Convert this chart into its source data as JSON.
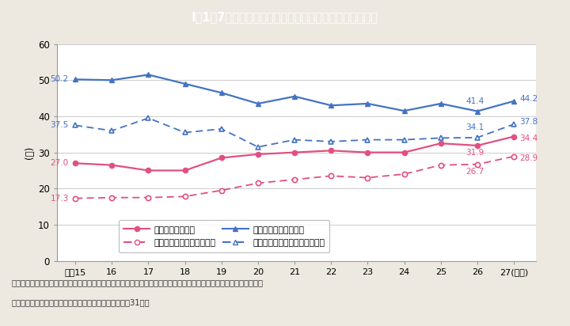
{
  "title": "I－1－7図　地方公務員採用者に占める女性の割合の推移",
  "title_bg_color": "#00b0c8",
  "bg_color": "#ede8e0",
  "plot_bg_color": "#ffffff",
  "ylabel": "(％)",
  "years": [
    "平成15",
    "16",
    "17",
    "18",
    "19",
    "20",
    "21",
    "22",
    "23",
    "24",
    "25",
    "26",
    "27"
  ],
  "last_xlabel": "27(年度)",
  "todo_zentai": [
    27.0,
    26.5,
    25.0,
    25.0,
    28.5,
    29.5,
    30.0,
    30.5,
    30.0,
    30.0,
    32.5,
    31.9,
    34.4
  ],
  "todo_daigaku": [
    17.3,
    17.5,
    17.5,
    17.8,
    19.5,
    21.5,
    22.5,
    23.5,
    23.0,
    24.0,
    26.5,
    26.7,
    28.9
  ],
  "seifurei_zentai": [
    50.2,
    50.0,
    51.5,
    49.0,
    46.5,
    43.5,
    45.5,
    43.0,
    43.5,
    41.5,
    43.5,
    41.4,
    44.2
  ],
  "seifurei_daigaku": [
    37.5,
    36.0,
    39.5,
    35.5,
    36.5,
    31.5,
    33.5,
    33.0,
    33.5,
    33.5,
    34.0,
    34.1,
    37.8
  ],
  "pink": "#e05080",
  "blue": "#4472c4",
  "ylim": [
    0,
    60
  ],
  "yticks": [
    0,
    10,
    20,
    30,
    40,
    50,
    60
  ],
  "label_todo_zentai": "都道府県（全体）",
  "label_todo_daigaku": "都道府県（大学卒業程度）",
  "label_seifurei_zentai": "政令指定都市（全体）",
  "label_seifurei_daigaku": "政令指定都市（大学卒業程度）",
  "footer1": "（備考）　１．内閣府「地方公共団体における男女共同参画社会の形成又は女性に関する施策の推進状況」より作成。",
  "footer2": "　　　　　２．採用期間は，各年４月１日から翠年３朎31日。"
}
